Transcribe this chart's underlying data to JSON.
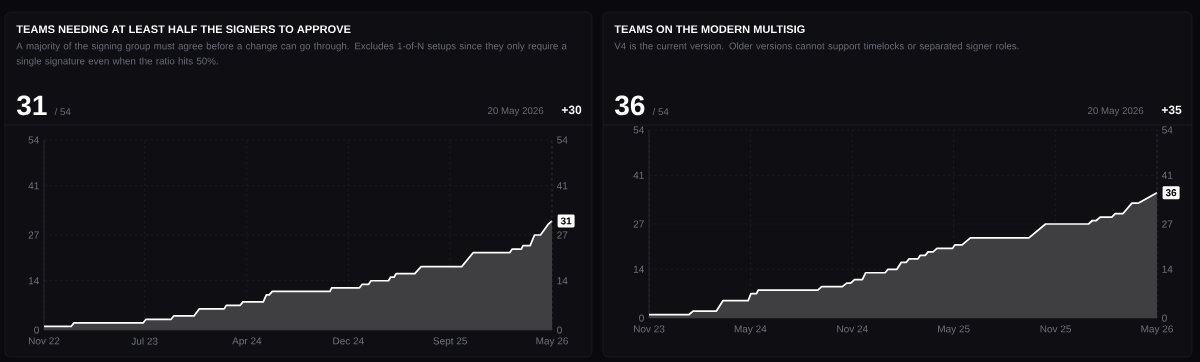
{
  "chart_data": [
    {
      "type": "area",
      "title": "TEAMS NEEDING AT LEAST HALF THE SIGNERS TO APPROVE",
      "subtitle": "A majority of the signing group must agree before a change can go through. Excludes 1-of-N setups since they only require a single signature even when the ratio hits 50%.",
      "x": [
        "2022-11-20",
        "2023-01-27",
        "2023-02-03",
        "2023-07-27",
        "2023-08-03",
        "2023-10-05",
        "2023-10-12",
        "2023-12-02",
        "2023-12-15",
        "2024-02-16",
        "2024-02-21",
        "2024-03-27",
        "2024-04-03",
        "2024-05-24",
        "2024-06-01",
        "2024-06-08",
        "2024-06-16",
        "2024-11-08",
        "2024-11-12",
        "2025-01-21",
        "2025-01-28",
        "2025-02-13",
        "2025-02-19",
        "2025-04-04",
        "2025-04-09",
        "2025-04-18",
        "2025-04-23",
        "2025-06-09",
        "2025-06-25",
        "2025-10-05",
        "2025-11-03",
        "2026-02-03",
        "2026-02-09",
        "2026-03-04",
        "2026-03-08",
        "2026-03-26",
        "2026-04-06",
        "2026-04-21",
        "2026-05-10",
        "2026-05-20"
      ],
      "series": [
        {
          "color": "#ffffff",
          "values": [
            1,
            1,
            2,
            2,
            3,
            3,
            4,
            4,
            6,
            6,
            7,
            7,
            8,
            8,
            10,
            10,
            11,
            11,
            12,
            12,
            13,
            13,
            14,
            14,
            15,
            15,
            16,
            16,
            18,
            18,
            22,
            22,
            23,
            23,
            24,
            24,
            27,
            27,
            30,
            31
          ]
        }
      ],
      "xlim": [
        "2022-11-20",
        "2026-05-20"
      ],
      "xticks": [
        {
          "value": "2022-11-20",
          "label": "Nov 22"
        },
        {
          "value": "2023-07-31",
          "label": "Jul 23"
        },
        {
          "value": "2024-04-13",
          "label": "Apr 24"
        },
        {
          "value": "2024-12-24",
          "label": "Dec 24"
        },
        {
          "value": "2025-09-06",
          "label": "Sept 25"
        },
        {
          "value": "2026-05-20",
          "label": "May 26"
        }
      ],
      "ylim": [
        0,
        54
      ],
      "yticks": [
        0,
        14,
        27,
        41,
        54
      ],
      "y2lim": [
        0,
        54
      ],
      "y2ticks": [
        0,
        14,
        27,
        41,
        54
      ],
      "grid": true,
      "annotations": [
        "31",
        "/ 54",
        "20 May 2026",
        "+30",
        {
          "text": "31",
          "x": "2026-05-20",
          "y": 31
        }
      ]
    },
    {
      "type": "area",
      "title": "TEAMS ON THE MODERN MULTISIG",
      "subtitle": "V4 is the current version. Older versions cannot support timelocks or separated signer roles.",
      "x": [
        "2023-11-20",
        "2024-01-31",
        "2024-02-07",
        "2024-03-20",
        "2024-04-01",
        "2024-05-16",
        "2024-05-21",
        "2024-05-31",
        "2024-06-03",
        "2024-09-18",
        "2024-09-25",
        "2024-11-01",
        "2024-11-09",
        "2024-11-16",
        "2024-11-23",
        "2024-12-07",
        "2024-12-13",
        "2025-01-17",
        "2025-01-22",
        "2025-02-07",
        "2025-02-15",
        "2025-02-24",
        "2025-03-01",
        "2025-03-17",
        "2025-03-21",
        "2025-03-30",
        "2025-04-04",
        "2025-04-13",
        "2025-04-20",
        "2025-05-18",
        "2025-05-22",
        "2025-06-04",
        "2025-06-19",
        "2025-10-02",
        "2025-11-01",
        "2026-01-17",
        "2026-01-24",
        "2026-01-31",
        "2026-02-07",
        "2026-02-28",
        "2026-03-06",
        "2026-03-20",
        "2026-04-05",
        "2026-04-17",
        "2026-05-20"
      ],
      "series": [
        {
          "color": "#ffffff",
          "values": [
            1,
            1,
            2,
            2,
            5,
            5,
            7,
            7,
            8,
            8,
            9,
            9,
            10,
            10,
            11,
            11,
            13,
            13,
            14,
            14,
            16,
            16,
            17,
            17,
            18,
            18,
            19,
            19,
            20,
            20,
            21,
            21,
            23,
            23,
            27,
            27,
            28,
            28,
            29,
            29,
            30,
            30,
            33,
            33,
            36
          ]
        }
      ],
      "xlim": [
        "2023-11-20",
        "2026-05-20"
      ],
      "xticks": [
        {
          "value": "2023-11-20",
          "label": "Nov 23"
        },
        {
          "value": "2024-05-20",
          "label": "May 24"
        },
        {
          "value": "2024-11-19",
          "label": "Nov 24"
        },
        {
          "value": "2025-05-20",
          "label": "May 25"
        },
        {
          "value": "2025-11-19",
          "label": "Nov 25"
        },
        {
          "value": "2026-05-20",
          "label": "May 26"
        }
      ],
      "ylim": [
        0,
        54
      ],
      "yticks": [
        0,
        14,
        27,
        41,
        54
      ],
      "y2lim": [
        0,
        54
      ],
      "y2ticks": [
        0,
        14,
        27,
        41,
        54
      ],
      "grid": true,
      "annotations": [
        "36",
        "/ 54",
        "20 May 2026",
        "+35",
        {
          "text": "36",
          "x": "2026-05-20",
          "y": 36
        }
      ]
    }
  ]
}
